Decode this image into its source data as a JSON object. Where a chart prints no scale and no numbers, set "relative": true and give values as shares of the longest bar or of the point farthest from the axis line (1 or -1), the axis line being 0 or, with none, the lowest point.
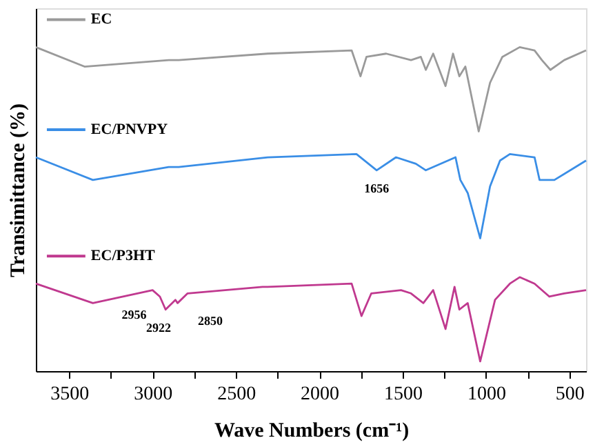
{
  "chart_data": {
    "type": "line",
    "relative": true,
    "xlabel": "Wave Numbers (cm⁻¹)",
    "ylabel": "Transimittance (%)",
    "xlim": [
      3700,
      400
    ],
    "xticks": [
      3500,
      {
        "value": 3250,
        "label": null
      },
      3000,
      {
        "value": 2750,
        "label": null
      },
      2500,
      {
        "value": 2250,
        "label": null
      },
      2000,
      {
        "value": 1750,
        "label": null
      },
      1500,
      {
        "value": 1250,
        "label": null
      },
      1000,
      {
        "value": 750,
        "label": null
      },
      500
    ],
    "legend": "left",
    "grid": false,
    "tick_labels": "x",
    "series": [
      {
        "name": "EC",
        "color": "#9a9a9a",
        "x": [
          3700,
          3408,
          2903,
          2843,
          2310,
          1806,
          1753,
          1717,
          1599,
          1450,
          1391,
          1361,
          1317,
          1243,
          1198,
          1160,
          1124,
          1044,
          976,
          902,
          798,
          709,
          665,
          614,
          531,
          400
        ],
        "values": [
          1.0,
          0.94,
          0.96,
          0.96,
          0.98,
          0.99,
          0.91,
          0.97,
          0.98,
          0.96,
          0.97,
          0.93,
          0.98,
          0.88,
          0.98,
          0.91,
          0.94,
          0.74,
          0.89,
          0.97,
          1.0,
          0.99,
          0.96,
          0.93,
          0.96,
          0.99
        ]
      },
      {
        "name": "EC/PNVPY",
        "color": "#3a8ee6",
        "x": [
          3700,
          3358,
          2903,
          2843,
          2310,
          1777,
          1656,
          1540,
          1421,
          1361,
          1228,
          1183,
          1154,
          1110,
          1035,
          976,
          916,
          857,
          709,
          679,
          590,
          400
        ],
        "values": [
          0.66,
          0.59,
          0.63,
          0.63,
          0.66,
          0.67,
          0.62,
          0.66,
          0.64,
          0.62,
          0.65,
          0.66,
          0.59,
          0.55,
          0.41,
          0.57,
          0.65,
          0.67,
          0.66,
          0.59,
          0.59,
          0.65
        ]
      },
      {
        "name": "EC/P3HT",
        "color": "#c0398f",
        "x": [
          3700,
          3358,
          3000,
          2956,
          2922,
          2863,
          2850,
          2790,
          2340,
          2310,
          1806,
          1747,
          1688,
          1510,
          1450,
          1376,
          1317,
          1243,
          1189,
          1160,
          1110,
          1035,
          946,
          857,
          798,
          709,
          620,
          531,
          400
        ],
        "values": [
          0.27,
          0.21,
          0.25,
          0.23,
          0.19,
          0.22,
          0.21,
          0.24,
          0.26,
          0.26,
          0.27,
          0.17,
          0.24,
          0.25,
          0.24,
          0.21,
          0.25,
          0.13,
          0.26,
          0.19,
          0.21,
          0.03,
          0.22,
          0.27,
          0.29,
          0.27,
          0.23,
          0.24,
          0.25
        ]
      }
    ],
    "annotations": [
      {
        "text": "1656",
        "x": 1656,
        "y": 0.62
      },
      {
        "text": "2956",
        "x": 2956,
        "y": 0.23
      },
      {
        "text": "2922",
        "x": 2922,
        "y": 0.19
      },
      {
        "text": "2850",
        "x": 2850,
        "y": 0.21
      }
    ]
  }
}
